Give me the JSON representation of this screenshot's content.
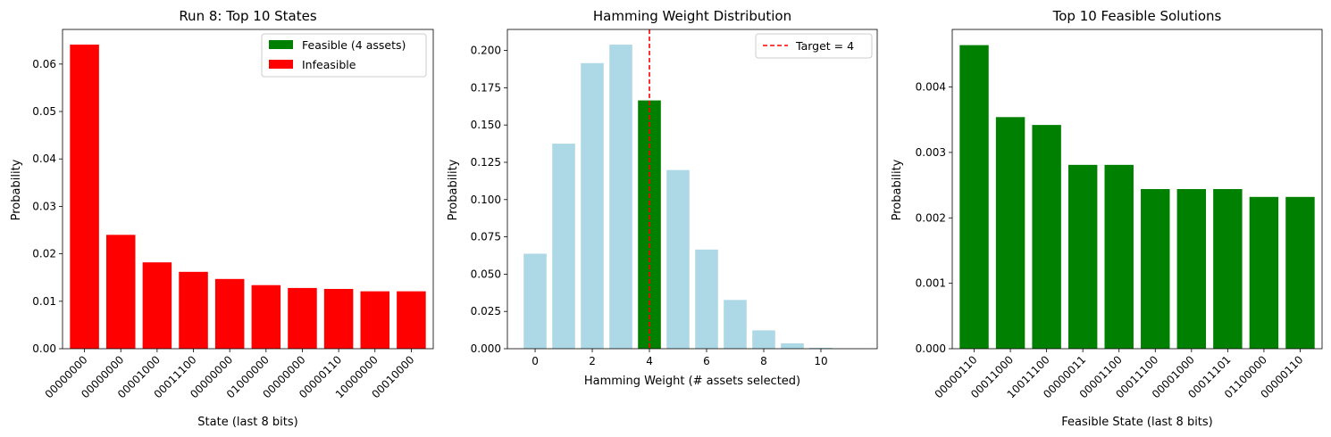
{
  "colors": {
    "feasible": "#008000",
    "infeasible": "#ff0000",
    "other_weight": "#add8e6",
    "target_line": "#ff0000"
  },
  "chart_data": [
    {
      "type": "bar",
      "title": "Run 8: Top 10 States",
      "xlabel": "State (last 8 bits)",
      "ylabel": "Probability",
      "categories": [
        "00000000",
        "00000000",
        "00001000",
        "00011100",
        "00000000",
        "01000000",
        "00000000",
        "00000110",
        "10000000",
        "00010000"
      ],
      "values": [
        0.0641,
        0.024,
        0.0182,
        0.0162,
        0.0147,
        0.0134,
        0.0128,
        0.0126,
        0.0121,
        0.0121
      ],
      "feasible": [
        false,
        false,
        false,
        false,
        false,
        false,
        false,
        false,
        false,
        false
      ],
      "ylim": [
        0,
        0.0673
      ],
      "yticks": [
        "0.00",
        "0.01",
        "0.02",
        "0.03",
        "0.04",
        "0.05",
        "0.06"
      ],
      "ytick_values": [
        0,
        0.01,
        0.02,
        0.03,
        0.04,
        0.05,
        0.06
      ],
      "legend": {
        "position": "top-right",
        "entries": [
          {
            "label": "Feasible (4 assets)",
            "color": "#008000"
          },
          {
            "label": "Infeasible",
            "color": "#ff0000"
          }
        ]
      }
    },
    {
      "type": "bar",
      "title": "Hamming Weight Distribution",
      "xlabel": "Hamming Weight (# assets selected)",
      "ylabel": "Probability",
      "x": [
        0,
        1,
        2,
        3,
        4,
        5,
        6,
        7,
        8,
        9,
        10,
        11
      ],
      "values": [
        0.0637,
        0.1375,
        0.1915,
        0.2039,
        0.1665,
        0.1198,
        0.0665,
        0.0327,
        0.0123,
        0.0036,
        0.0006,
        0.0001
      ],
      "highlight_x": 4,
      "xlim": [
        -0.97,
        11.97
      ],
      "ylim": [
        0,
        0.2141
      ],
      "xticks": [
        "0",
        "2",
        "4",
        "6",
        "8",
        "10"
      ],
      "xtick_values": [
        0,
        2,
        4,
        6,
        8,
        10
      ],
      "yticks": [
        "0.000",
        "0.025",
        "0.050",
        "0.075",
        "0.100",
        "0.125",
        "0.150",
        "0.175",
        "0.200"
      ],
      "ytick_values": [
        0,
        0.025,
        0.05,
        0.075,
        0.1,
        0.125,
        0.15,
        0.175,
        0.2
      ],
      "target_line": {
        "x": 4,
        "label": "Target = 4"
      },
      "legend": {
        "position": "top-right"
      }
    },
    {
      "type": "bar",
      "title": "Top 10 Feasible Solutions",
      "xlabel": "Feasible State (last 8 bits)",
      "ylabel": "Probability",
      "categories": [
        "00000110",
        "00011000",
        "10011100",
        "00000011",
        "00001100",
        "00011100",
        "00001000",
        "00011101",
        "01100000",
        "00000110"
      ],
      "values": [
        0.00464,
        0.00354,
        0.00342,
        0.00281,
        0.00281,
        0.00244,
        0.00244,
        0.00244,
        0.00232,
        0.00232
      ],
      "ylim": [
        0,
        0.00488
      ],
      "yticks": [
        "0.000",
        "0.001",
        "0.002",
        "0.003",
        "0.004"
      ],
      "ytick_values": [
        0,
        0.001,
        0.002,
        0.003,
        0.004
      ]
    }
  ]
}
